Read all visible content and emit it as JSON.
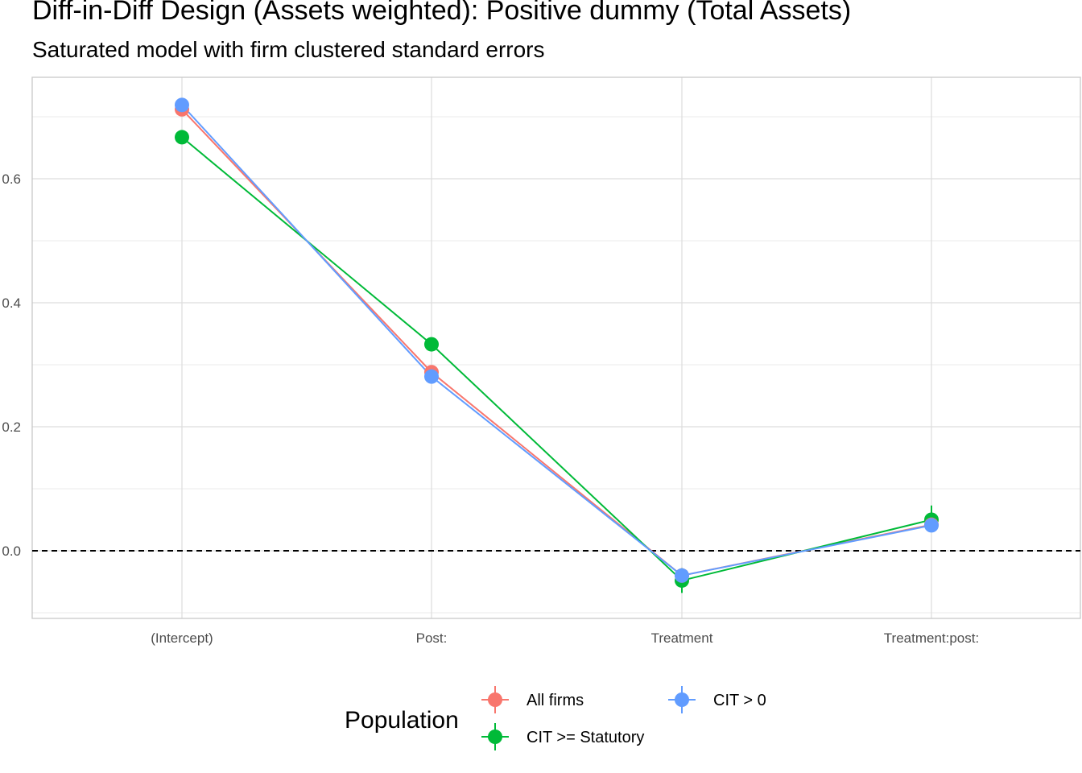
{
  "chart_data": {
    "type": "line",
    "title": "Diff-in-Diff Design (Assets weighted): Positive dummy (Total Assets)",
    "subtitle": "Saturated model with firm clustered standard errors",
    "xlabel": "",
    "ylabel": "",
    "categories": [
      "(Intercept)",
      "Post:",
      "Treatment",
      "Treatment:post:"
    ],
    "ylim": [
      -0.11,
      0.765
    ],
    "yticks": [
      0.0,
      0.2,
      0.4,
      0.6
    ],
    "ytick_labels": [
      "0.0",
      "0.2",
      "0.4",
      "0.6"
    ],
    "reference_line": {
      "y": 0,
      "style": "dashed"
    },
    "grid": true,
    "legend": {
      "title": "Population",
      "position": "bottom"
    },
    "series": [
      {
        "name": "All firms",
        "color": "#F8766D",
        "values": [
          0.712,
          0.288,
          -0.04,
          0.042
        ],
        "ci_low": [
          0.712,
          0.288,
          -0.047,
          0.036
        ],
        "ci_high": [
          0.712,
          0.288,
          -0.033,
          0.048
        ]
      },
      {
        "name": "CIT >= Statutory",
        "color": "#00BA38",
        "values": [
          0.667,
          0.333,
          -0.048,
          0.05
        ],
        "ci_low": [
          0.667,
          0.333,
          -0.068,
          0.034
        ],
        "ci_high": [
          0.667,
          0.333,
          -0.028,
          0.073
        ]
      },
      {
        "name": "CIT > 0",
        "color": "#619CFF",
        "values": [
          0.719,
          0.281,
          -0.04,
          0.041
        ],
        "ci_low": [
          0.719,
          0.281,
          -0.047,
          0.035
        ],
        "ci_high": [
          0.719,
          0.281,
          -0.033,
          0.047
        ]
      }
    ]
  }
}
